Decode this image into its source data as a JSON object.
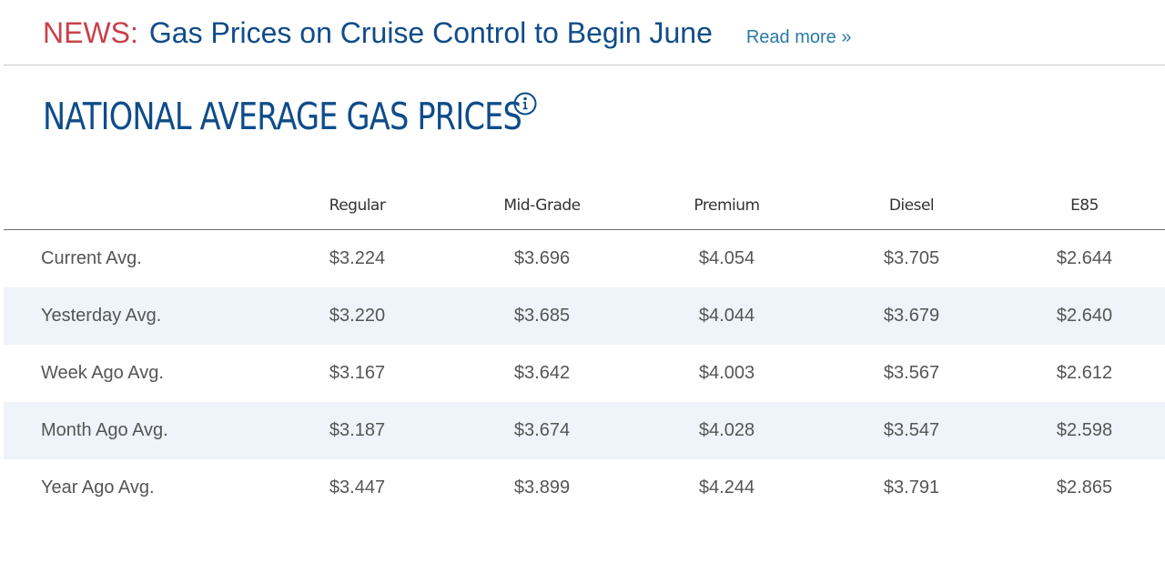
{
  "news": {
    "label": "NEWS:",
    "headline": "Gas Prices on Cruise Control to Begin June",
    "read_more": "Read more »"
  },
  "page": {
    "title": "NATIONAL AVERAGE GAS PRICES",
    "info_icon": "info-icon"
  },
  "table": {
    "columns": [
      "Regular",
      "Mid-Grade",
      "Premium",
      "Diesel",
      "E85"
    ],
    "rows": [
      {
        "label": "Current Avg.",
        "values": [
          "$3.224",
          "$3.696",
          "$4.054",
          "$3.705",
          "$2.644"
        ]
      },
      {
        "label": "Yesterday Avg.",
        "values": [
          "$3.220",
          "$3.685",
          "$4.044",
          "$3.679",
          "$2.640"
        ]
      },
      {
        "label": "Week Ago Avg.",
        "values": [
          "$3.167",
          "$3.642",
          "$4.003",
          "$3.567",
          "$2.612"
        ]
      },
      {
        "label": "Month Ago Avg.",
        "values": [
          "$3.187",
          "$3.674",
          "$4.028",
          "$3.547",
          "$2.598"
        ]
      },
      {
        "label": "Year Ago Avg.",
        "values": [
          "$3.447",
          "$3.899",
          "$4.244",
          "$3.791",
          "$2.865"
        ]
      }
    ]
  },
  "colors": {
    "news_label": "#c8414b",
    "brand_blue": "#0f4c8a",
    "link": "#2a7aa5",
    "row_alt_bg": "#eef4f9"
  }
}
